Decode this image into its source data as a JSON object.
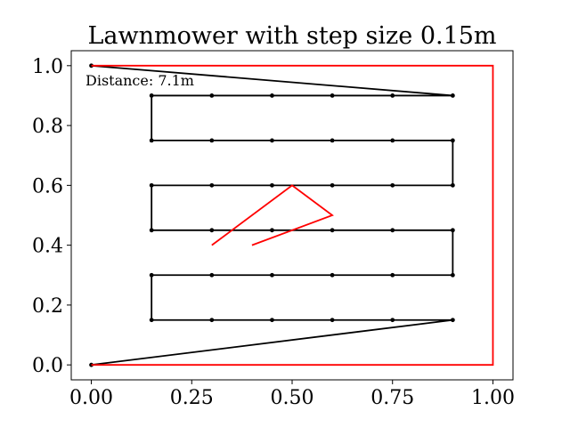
{
  "chart_data": {
    "type": "line",
    "title": "Lawnmower with step size 0.15m",
    "xlabel": "",
    "ylabel": "",
    "xlim": [
      -0.05,
      1.05
    ],
    "ylim": [
      -0.05,
      1.05
    ],
    "x_ticks": [
      0.0,
      0.25,
      0.5,
      0.75,
      1.0
    ],
    "x_tick_labels": [
      "0.00",
      "0.25",
      "0.50",
      "0.75",
      "1.00"
    ],
    "y_ticks": [
      0.0,
      0.2,
      0.4,
      0.6,
      0.8,
      1.0
    ],
    "y_tick_labels": [
      "0.0",
      "0.2",
      "0.4",
      "0.6",
      "0.8",
      "1.0"
    ],
    "grid": false,
    "legend": false,
    "annotation": "Distance: 7.1m",
    "series": [
      {
        "color": "#000000",
        "style": "line-with-markers",
        "points": [
          [
            0.0,
            1.0
          ],
          [
            0.9,
            0.9
          ],
          [
            0.75,
            0.9
          ],
          [
            0.6,
            0.9
          ],
          [
            0.45,
            0.9
          ],
          [
            0.3,
            0.9
          ],
          [
            0.15,
            0.9
          ],
          [
            0.15,
            0.75
          ],
          [
            0.3,
            0.75
          ],
          [
            0.45,
            0.75
          ],
          [
            0.6,
            0.75
          ],
          [
            0.75,
            0.75
          ],
          [
            0.9,
            0.75
          ],
          [
            0.9,
            0.6
          ],
          [
            0.75,
            0.6
          ],
          [
            0.6,
            0.6
          ],
          [
            0.45,
            0.6
          ],
          [
            0.3,
            0.6
          ],
          [
            0.15,
            0.6
          ],
          [
            0.15,
            0.45
          ],
          [
            0.3,
            0.45
          ],
          [
            0.45,
            0.45
          ],
          [
            0.6,
            0.45
          ],
          [
            0.75,
            0.45
          ],
          [
            0.9,
            0.45
          ],
          [
            0.9,
            0.3
          ],
          [
            0.75,
            0.3
          ],
          [
            0.6,
            0.3
          ],
          [
            0.45,
            0.3
          ],
          [
            0.3,
            0.3
          ],
          [
            0.15,
            0.3
          ],
          [
            0.15,
            0.15
          ],
          [
            0.3,
            0.15
          ],
          [
            0.45,
            0.15
          ],
          [
            0.6,
            0.15
          ],
          [
            0.75,
            0.15
          ],
          [
            0.9,
            0.15
          ],
          [
            0.0,
            0.0
          ]
        ]
      },
      {
        "color": "#ff0000",
        "style": "line",
        "points": [
          [
            0.0,
            1.0
          ],
          [
            1.0,
            1.0
          ],
          [
            1.0,
            0.0
          ],
          [
            0.0,
            0.0
          ]
        ]
      },
      {
        "color": "#ff0000",
        "style": "line",
        "points": [
          [
            0.3,
            0.4
          ],
          [
            0.5,
            0.6
          ],
          [
            0.6,
            0.5
          ],
          [
            0.4,
            0.4
          ]
        ]
      }
    ]
  }
}
